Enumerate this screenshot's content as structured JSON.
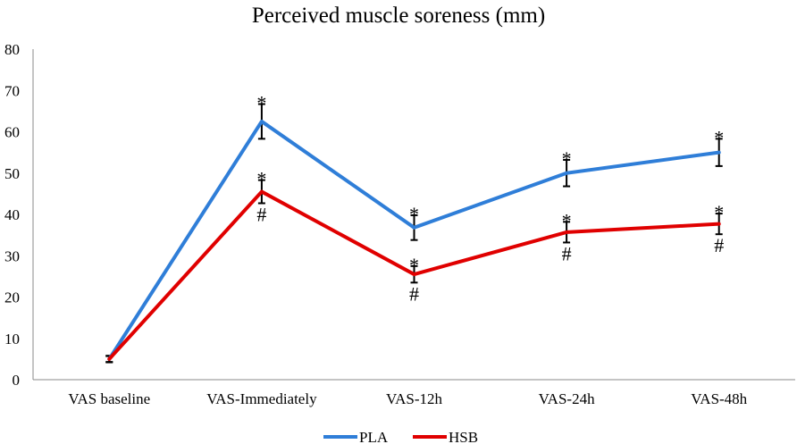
{
  "chart_data": {
    "type": "line",
    "title": "Perceived muscle soreness (mm)",
    "xlabel": "",
    "ylabel": "",
    "ylim": [
      0,
      80
    ],
    "yticks": [
      0,
      10,
      20,
      30,
      40,
      50,
      60,
      70,
      80
    ],
    "grid": false,
    "legend_position": "bottom",
    "categories": [
      "VAS baseline",
      "VAS-Immediately",
      "VAS-12h",
      "VAS-24h",
      "VAS-48h"
    ],
    "series": [
      {
        "name": "PLA",
        "color": "#2f7ed8",
        "values": [
          5,
          62.5,
          36.8,
          50,
          55
        ],
        "errors": [
          0.8,
          4.2,
          3,
          3.2,
          3.3
        ],
        "annotations": [
          "",
          "*",
          "*",
          "*",
          "*"
        ]
      },
      {
        "name": "HSB",
        "color": "#e00000",
        "values": [
          5,
          45.5,
          25.5,
          35.7,
          37.7
        ],
        "errors": [
          0.7,
          2.8,
          2,
          2.5,
          2.5
        ],
        "annotations": [
          "",
          "*\n#",
          "*\n#",
          "*\n#",
          "*\n#"
        ]
      }
    ]
  }
}
